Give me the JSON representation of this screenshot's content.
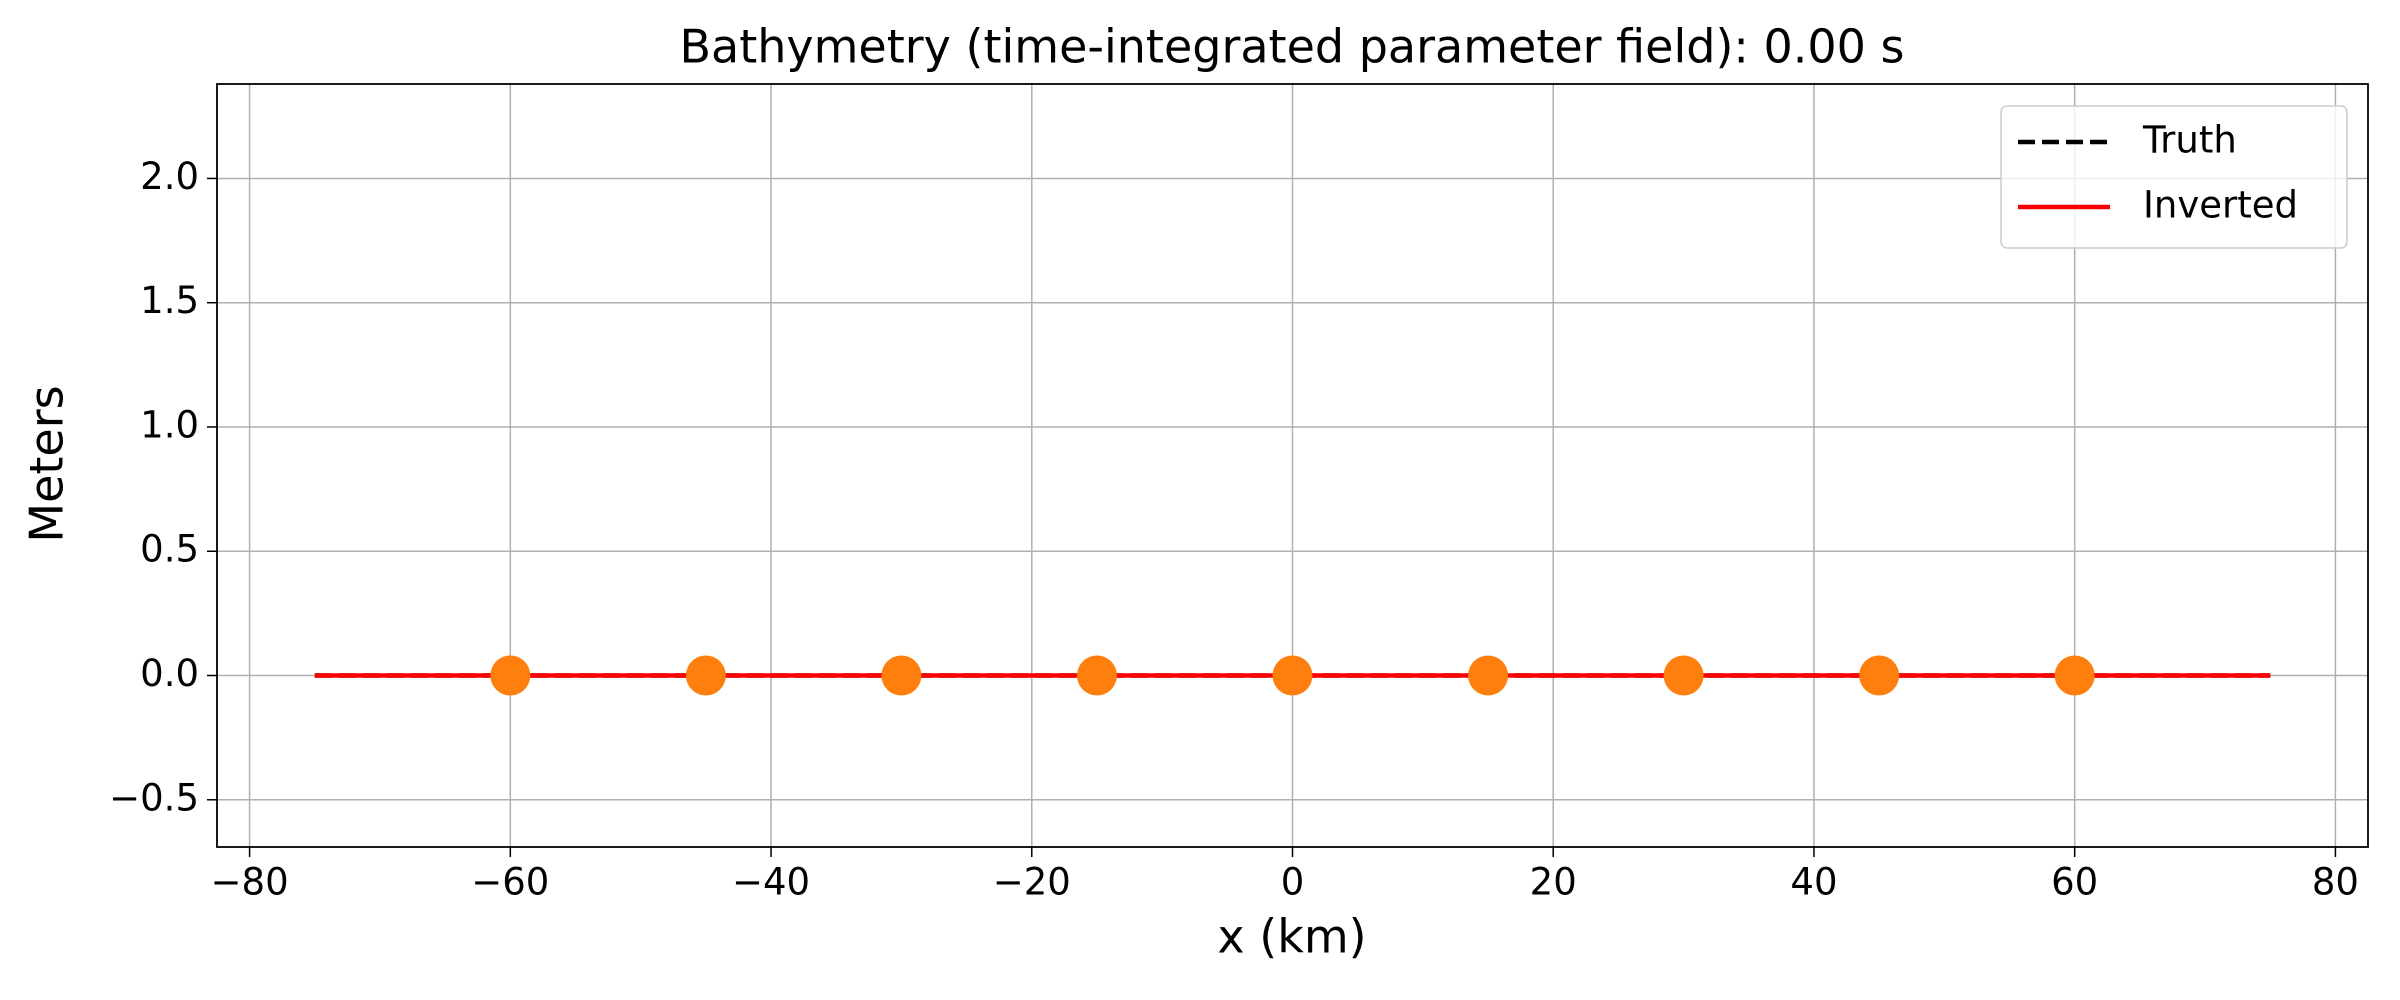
{
  "chart_data": {
    "type": "line",
    "title": "Bathymetry (time-integrated parameter field):  0.00 s",
    "xlabel": "x (km)",
    "ylabel": "Meters",
    "xlim": [
      -82.5,
      82.5
    ],
    "ylim": [
      -0.69,
      2.38
    ],
    "xticks": [
      {
        "value": -80,
        "label": "−80"
      },
      {
        "value": -60,
        "label": "−60"
      },
      {
        "value": -40,
        "label": "−40"
      },
      {
        "value": -20,
        "label": "−20"
      },
      0,
      20,
      40,
      60,
      80
    ],
    "yticks": [
      {
        "value": -0.5,
        "label": "−0.5"
      },
      {
        "value": 0,
        "label": "0.0"
      },
      {
        "value": 0.5,
        "label": "0.5"
      },
      {
        "value": 1,
        "label": "1.0"
      },
      {
        "value": 1.5,
        "label": "1.5"
      },
      {
        "value": 2,
        "label": "2.0"
      }
    ],
    "grid": true,
    "legend": "upper right",
    "series": [
      {
        "name": "Truth",
        "color": "#000000",
        "dash": true,
        "x": [
          -75,
          75
        ],
        "values": [
          0,
          0
        ]
      },
      {
        "name": "Inverted",
        "color": "#ff0000",
        "dash": false,
        "x": [
          -75,
          75
        ],
        "values": [
          0,
          0
        ]
      }
    ],
    "markers": {
      "color": "#ff7f0e",
      "x": [
        -60,
        -45,
        -30,
        -15,
        0,
        15,
        30,
        45,
        60
      ],
      "values": [
        0,
        0,
        0,
        0,
        0,
        0,
        0,
        0,
        0
      ]
    }
  }
}
